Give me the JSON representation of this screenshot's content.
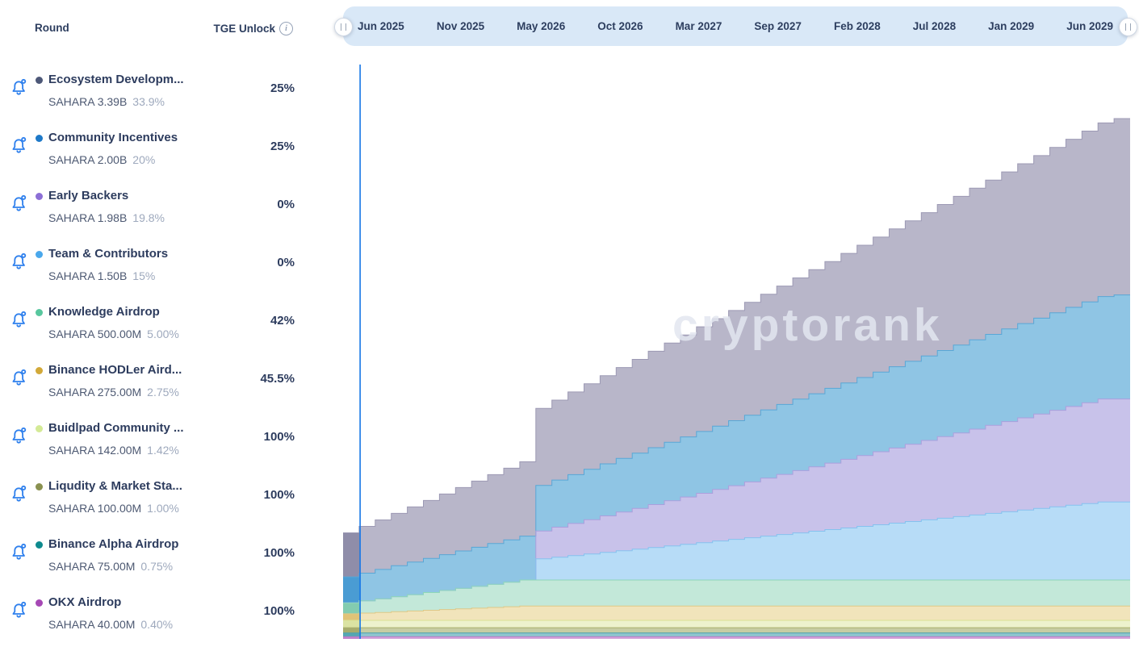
{
  "left_panel": {
    "header": {
      "round": "Round",
      "tge_unlock": "TGE Unlock"
    },
    "rows": [
      {
        "name": "Ecosystem Developm...",
        "token_amount": "SAHARA 3.39B",
        "supply_pct": "33.9%",
        "tge_unlock": "25%",
        "dot_color": "#4d5878"
      },
      {
        "name": "Community Incentives",
        "token_amount": "SAHARA 2.00B",
        "supply_pct": "20%",
        "tge_unlock": "25%",
        "dot_color": "#1e79c8"
      },
      {
        "name": "Early Backers",
        "token_amount": "SAHARA 1.98B",
        "supply_pct": "19.8%",
        "tge_unlock": "0%",
        "dot_color": "#8c6fd6"
      },
      {
        "name": "Team & Contributors",
        "token_amount": "SAHARA 1.50B",
        "supply_pct": "15%",
        "tge_unlock": "0%",
        "dot_color": "#4aa8ec"
      },
      {
        "name": "Knowledge Airdrop",
        "token_amount": "SAHARA 500.00M",
        "supply_pct": "5.00%",
        "tge_unlock": "42%",
        "dot_color": "#58c79e"
      },
      {
        "name": "Binance HODLer Aird...",
        "token_amount": "SAHARA 275.00M",
        "supply_pct": "2.75%",
        "tge_unlock": "45.5%",
        "dot_color": "#d2a939"
      },
      {
        "name": "Buidlpad Community ...",
        "token_amount": "SAHARA 142.00M",
        "supply_pct": "1.42%",
        "tge_unlock": "100%",
        "dot_color": "#d4ea96"
      },
      {
        "name": "Liqudity & Market Sta...",
        "token_amount": "SAHARA 100.00M",
        "supply_pct": "1.00%",
        "tge_unlock": "100%",
        "dot_color": "#8a9150"
      },
      {
        "name": "Binance Alpha Airdrop",
        "token_amount": "SAHARA 75.00M",
        "supply_pct": "0.75%",
        "tge_unlock": "100%",
        "dot_color": "#0e8a8e"
      },
      {
        "name": "OKX Airdrop",
        "token_amount": "SAHARA 40.00M",
        "supply_pct": "0.40%",
        "tge_unlock": "100%",
        "dot_color": "#a648b5"
      }
    ],
    "bell_color": "#2f80ed"
  },
  "timeline": {
    "labels": [
      "Jun 2025",
      "Nov 2025",
      "May 2026",
      "Oct 2026",
      "Mar 2027",
      "Sep 2027",
      "Feb 2028",
      "Jul 2028",
      "Jan 2029",
      "Jun 2029"
    ],
    "bg_color": "#d9e8f7"
  },
  "watermark": "cryptorank",
  "chart_data": {
    "type": "area",
    "variant": "stacked-step-monthly-token-unlocks",
    "unit": "SAHARA tokens (millions)",
    "x_range": [
      "Jun 2025",
      "Jun 2029"
    ],
    "months_total": 49,
    "tick_labels": [
      "Jun 2025",
      "Nov 2025",
      "May 2026",
      "Oct 2026",
      "Mar 2027",
      "Sep 2027",
      "Feb 2028",
      "Jul 2028",
      "Jan 2029",
      "Jun 2029"
    ],
    "today_line_month": 1.06,
    "today_line_color": "#1677e6",
    "grid": false,
    "legend": "left panel rows",
    "series": [
      {
        "name": "Ecosystem Development",
        "tokens_m": 3390,
        "tge": 0.25,
        "cliff": 1,
        "cliff_unlock": 0,
        "vest_end": 48,
        "fill": "#b8b6c9",
        "fill_past": "#8f8da9",
        "stroke": "#9c99b4"
      },
      {
        "name": "Community Incentives",
        "tokens_m": 2000,
        "tge": 0.25,
        "cliff": 1,
        "cliff_unlock": 0,
        "vest_end": 48,
        "fill": "#8fc5e4",
        "fill_past": "#4a9cd3",
        "stroke": "#58a7d6"
      },
      {
        "name": "Early Backers",
        "tokens_m": 1980,
        "tge": 0,
        "cliff": 12,
        "cliff_unlock": 0.25,
        "vest_end": 47,
        "fill": "#c8c2ea",
        "fill_past": "#a598d8",
        "stroke": "#ab9fdd"
      },
      {
        "name": "Team & Contributors",
        "tokens_m": 1500,
        "tge": 0,
        "cliff": 12,
        "cliff_unlock": 0.25,
        "vest_end": 47,
        "fill": "#b7dcf7",
        "fill_past": "#8ec2ec",
        "stroke": "#85c2ef"
      },
      {
        "name": "Knowledge Airdrop",
        "tokens_m": 500,
        "tge": 0.42,
        "cliff": 1,
        "cliff_unlock": 0,
        "vest_end": 11,
        "fill": "#c3e8d9",
        "fill_past": "#83ccb0",
        "stroke": "#8ed6b8"
      },
      {
        "name": "Binance HODLer Airdrop",
        "tokens_m": 275,
        "tge": 0.455,
        "cliff": 1,
        "cliff_unlock": 0,
        "vest_end": 11,
        "fill": "#f1e4bb",
        "fill_past": "#e0c377",
        "stroke": "#dec887"
      },
      {
        "name": "Buidlpad Community Sale",
        "tokens_m": 142,
        "tge": 1,
        "cliff": 0,
        "cliff_unlock": 0,
        "vest_end": 0,
        "fill": "#edf2cd",
        "fill_past": "#dbe3a2",
        "stroke": "#d9e194"
      },
      {
        "name": "Liqudity & Market Stability",
        "tokens_m": 100,
        "tge": 1,
        "cliff": 0,
        "cliff_unlock": 0,
        "vest_end": 0,
        "fill": "#c7cda3",
        "fill_past": "#a6ac6d",
        "stroke": "#a9b06c"
      },
      {
        "name": "Binance Alpha Airdrop",
        "tokens_m": 75,
        "tge": 1,
        "cliff": 0,
        "cliff_unlock": 0,
        "vest_end": 0,
        "fill": "#8ec5cd",
        "fill_past": "#55a7b2",
        "stroke": "#4da3ae"
      },
      {
        "name": "OKX Airdrop",
        "tokens_m": 40,
        "tge": 1,
        "cliff": 0,
        "cliff_unlock": 0,
        "vest_end": 0,
        "fill": "#d4a5da",
        "fill_past": "#c183cc",
        "stroke": "#bb79c6"
      }
    ]
  }
}
